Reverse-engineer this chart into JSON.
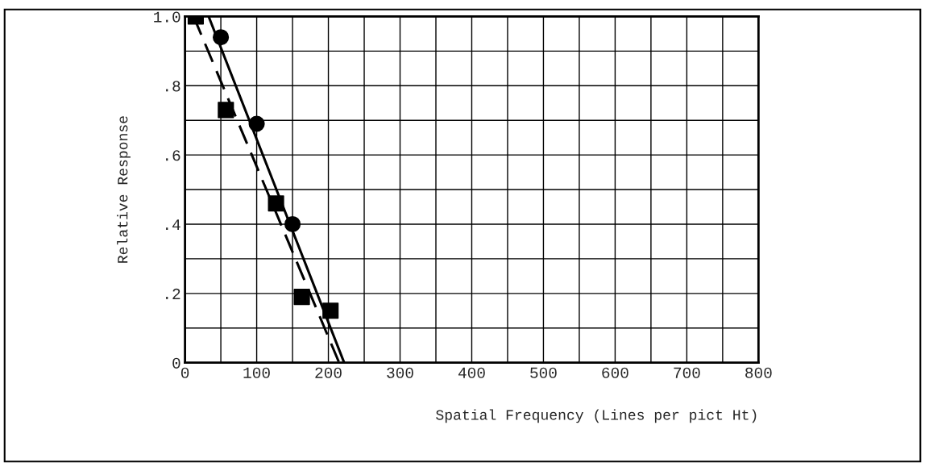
{
  "chart_data": {
    "type": "scatter",
    "xlabel": "Spatial Frequency (Lines per pict Ht)",
    "ylabel": "Relative Response",
    "xlim": [
      0,
      800
    ],
    "ylim": [
      0,
      1.0
    ],
    "xticks": [
      0,
      {
        "value": 50,
        "label": null
      },
      100,
      {
        "value": 150,
        "label": null
      },
      200,
      {
        "value": 250,
        "label": null
      },
      300,
      {
        "value": 350,
        "label": null
      },
      400,
      {
        "value": 450,
        "label": null
      },
      500,
      {
        "value": 550,
        "label": null
      },
      600,
      {
        "value": 650,
        "label": null
      },
      700,
      {
        "value": 750,
        "label": null
      },
      800
    ],
    "yticks": [
      0,
      {
        "value": 0.1,
        "label": null
      },
      {
        "value": 0.2,
        "label": ".2"
      },
      {
        "value": 0.3,
        "label": null
      },
      {
        "value": 0.4,
        "label": ".4"
      },
      {
        "value": 0.5,
        "label": null
      },
      {
        "value": 0.6,
        "label": ".6"
      },
      {
        "value": 0.7,
        "label": null
      },
      {
        "value": 0.8,
        "label": ".8"
      },
      {
        "value": 0.9,
        "label": null
      },
      {
        "value": 1.0,
        "label": "1.0"
      }
    ],
    "grid": true,
    "series": [
      {
        "marker": "circle",
        "color": "#000000",
        "x": [
          50,
          100,
          150
        ],
        "values": [
          0.94,
          0.69,
          0.4
        ]
      },
      {
        "marker": "square",
        "color": "#000000",
        "x": [
          15,
          57,
          127,
          163,
          203
        ],
        "values": [
          1.0,
          0.73,
          0.46,
          0.19,
          0.15
        ]
      },
      {
        "type": "line",
        "marker": "none",
        "line_style": "solid",
        "color": "#000000",
        "x": [
          33,
          222
        ],
        "values": [
          1.0,
          0.0
        ]
      },
      {
        "type": "line",
        "marker": "none",
        "line_style": "dashed",
        "color": "#000000",
        "x": [
          12,
          215
        ],
        "values": [
          1.0,
          0.0
        ]
      }
    ]
  }
}
